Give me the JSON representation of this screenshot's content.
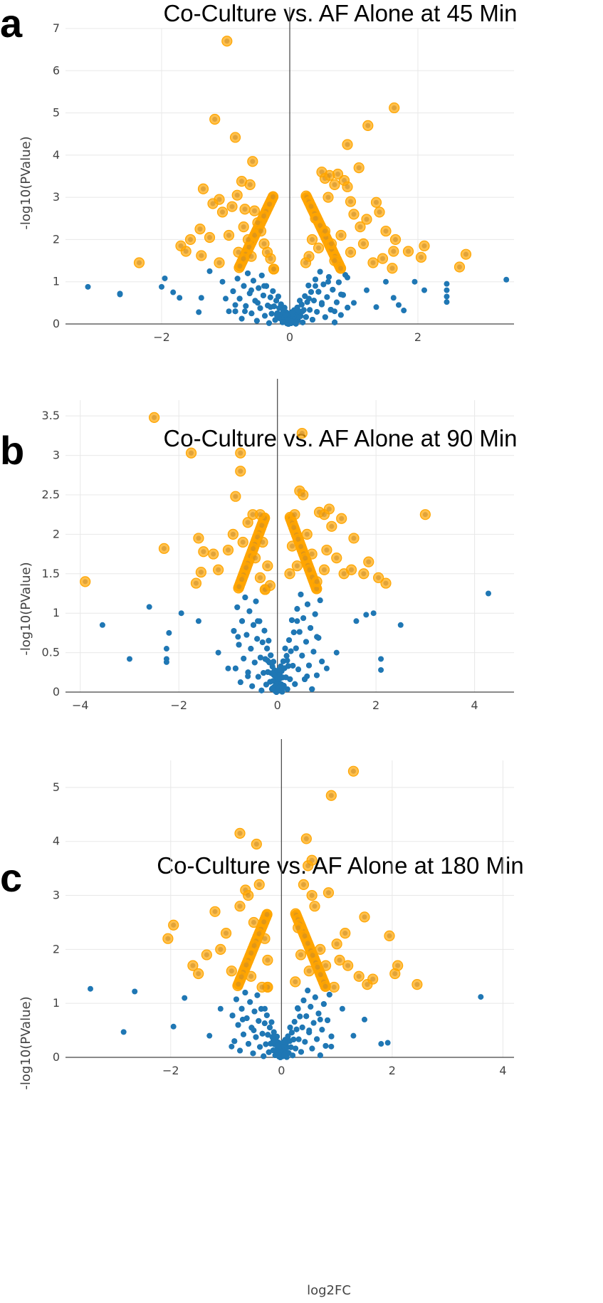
{
  "chart_data": [
    {
      "type": "scatter",
      "panel": "a",
      "title": "Co-Culture vs. AF Alone at 45 Min",
      "xlabel": "",
      "ylabel": "-log10(PValue)",
      "xlim": [
        -3.5,
        3.5
      ],
      "ylim": [
        0,
        7
      ],
      "xticks": [
        -2,
        0,
        2
      ],
      "yticks": [
        0,
        1,
        2,
        3,
        4,
        5,
        6,
        7
      ],
      "grid": true,
      "colors": {
        "significant": "#ffa500",
        "not_significant": "#1f77b4"
      },
      "significant_points": [
        [
          -0.98,
          6.7
        ],
        [
          -1.17,
          4.85
        ],
        [
          -0.85,
          4.42
        ],
        [
          -1.05,
          2.65
        ],
        [
          -1.35,
          3.2
        ],
        [
          -1.1,
          2.95
        ],
        [
          -0.75,
          3.38
        ],
        [
          -0.62,
          3.3
        ],
        [
          -0.58,
          3.85
        ],
        [
          -0.82,
          3.05
        ],
        [
          -0.9,
          2.78
        ],
        [
          -0.7,
          2.72
        ],
        [
          -1.2,
          2.85
        ],
        [
          -1.4,
          2.25
        ],
        [
          -1.25,
          2.05
        ],
        [
          -1.55,
          2.0
        ],
        [
          -1.7,
          1.85
        ],
        [
          -1.62,
          1.72
        ],
        [
          -1.38,
          1.62
        ],
        [
          -2.35,
          1.45
        ],
        [
          -1.1,
          1.45
        ],
        [
          -0.95,
          2.1
        ],
        [
          -0.8,
          1.7
        ],
        [
          -0.55,
          2.68
        ],
        [
          -0.5,
          2.4
        ],
        [
          -0.45,
          2.2
        ],
        [
          -0.4,
          1.9
        ],
        [
          -0.35,
          1.7
        ],
        [
          -0.3,
          1.55
        ],
        [
          -0.6,
          1.6
        ],
        [
          -0.72,
          2.3
        ],
        [
          -0.65,
          2.0
        ],
        [
          0.5,
          3.6
        ],
        [
          0.55,
          3.45
        ],
        [
          0.62,
          3.52
        ],
        [
          0.7,
          3.3
        ],
        [
          0.75,
          3.55
        ],
        [
          0.6,
          3.0
        ],
        [
          0.85,
          3.4
        ],
        [
          0.9,
          3.25
        ],
        [
          1.08,
          3.7
        ],
        [
          0.9,
          4.25
        ],
        [
          1.22,
          4.7
        ],
        [
          1.63,
          5.12
        ],
        [
          1.35,
          2.88
        ],
        [
          1.4,
          2.65
        ],
        [
          1.2,
          2.48
        ],
        [
          1.1,
          2.3
        ],
        [
          0.95,
          2.9
        ],
        [
          1.0,
          2.6
        ],
        [
          1.5,
          2.2
        ],
        [
          1.65,
          2.0
        ],
        [
          1.85,
          1.72
        ],
        [
          2.1,
          1.85
        ],
        [
          2.05,
          1.58
        ],
        [
          1.62,
          1.72
        ],
        [
          1.6,
          1.32
        ],
        [
          1.45,
          1.55
        ],
        [
          1.3,
          1.45
        ],
        [
          2.65,
          1.35
        ],
        [
          2.75,
          1.65
        ],
        [
          0.35,
          2.0
        ],
        [
          0.4,
          2.5
        ],
        [
          0.45,
          1.8
        ],
        [
          0.3,
          1.6
        ],
        [
          0.25,
          1.45
        ],
        [
          0.55,
          2.2
        ],
        [
          0.65,
          1.9
        ],
        [
          0.8,
          2.1
        ],
        [
          0.7,
          1.5
        ],
        [
          0.95,
          1.7
        ],
        [
          1.15,
          1.9
        ]
      ],
      "nonsignificant_points": [
        [
          -3.55,
          1.12
        ],
        [
          -3.15,
          0.88
        ],
        [
          -2.65,
          0.72
        ],
        [
          -2.65,
          0.7
        ],
        [
          -2.0,
          0.88
        ],
        [
          -1.95,
          1.08
        ],
        [
          -1.82,
          0.75
        ],
        [
          -1.72,
          0.62
        ],
        [
          -1.42,
          0.28
        ],
        [
          -1.38,
          0.62
        ],
        [
          -1.25,
          1.25
        ],
        [
          -1.05,
          1.0
        ],
        [
          -1.0,
          0.6
        ],
        [
          -0.95,
          0.3
        ],
        [
          -0.85,
          0.45
        ],
        [
          -0.7,
          0.3
        ],
        [
          -0.6,
          0.8
        ],
        [
          -0.5,
          0.5
        ],
        [
          -0.4,
          0.9
        ],
        [
          -0.3,
          0.4
        ],
        [
          -0.2,
          0.2
        ],
        [
          -0.1,
          0.05
        ],
        [
          0.1,
          0.05
        ],
        [
          0.2,
          0.3
        ],
        [
          0.3,
          0.6
        ],
        [
          0.4,
          0.9
        ],
        [
          0.5,
          0.5
        ],
        [
          0.6,
          1.0
        ],
        [
          0.7,
          0.3
        ],
        [
          0.8,
          0.7
        ],
        [
          0.9,
          1.1
        ],
        [
          1.0,
          0.5
        ],
        [
          1.2,
          0.8
        ],
        [
          1.35,
          0.4
        ],
        [
          1.5,
          1.0
        ],
        [
          1.62,
          0.62
        ],
        [
          1.7,
          0.45
        ],
        [
          1.78,
          0.32
        ],
        [
          1.95,
          1.0
        ],
        [
          2.1,
          0.8
        ],
        [
          2.45,
          0.95
        ],
        [
          2.45,
          0.8
        ],
        [
          2.45,
          0.65
        ],
        [
          2.45,
          0.52
        ],
        [
          3.38,
          1.05
        ]
      ]
    },
    {
      "type": "scatter",
      "panel": "b",
      "title": "Co-Culture vs. AF Alone at 90 Min",
      "xlabel": "",
      "ylabel": "-log10(PValue)",
      "xlim": [
        -4.3,
        4.8
      ],
      "ylim": [
        0,
        3.7
      ],
      "xticks": [
        -4,
        -2,
        0,
        2,
        4
      ],
      "yticks": [
        0,
        0.5,
        1,
        1.5,
        2,
        2.5,
        3,
        3.5
      ],
      "grid": true,
      "colors": {
        "significant": "#ffa500",
        "not_significant": "#1f77b4"
      },
      "significant_points": [
        [
          -2.5,
          3.48
        ],
        [
          -1.75,
          3.03
        ],
        [
          -0.75,
          3.03
        ],
        [
          -0.75,
          2.8
        ],
        [
          -0.85,
          2.48
        ],
        [
          -0.5,
          2.25
        ],
        [
          -0.35,
          2.25
        ],
        [
          -1.6,
          1.95
        ],
        [
          -2.3,
          1.82
        ],
        [
          -1.5,
          1.78
        ],
        [
          -1.3,
          1.75
        ],
        [
          -1.2,
          1.55
        ],
        [
          -1.55,
          1.52
        ],
        [
          -1.65,
          1.38
        ],
        [
          -3.9,
          1.4
        ],
        [
          -1.0,
          1.8
        ],
        [
          -0.9,
          2.0
        ],
        [
          -0.7,
          1.9
        ],
        [
          -0.6,
          2.15
        ],
        [
          -0.3,
          1.9
        ],
        [
          -0.45,
          1.7
        ],
        [
          -0.35,
          1.45
        ],
        [
          -0.2,
          1.6
        ],
        [
          -0.15,
          1.35
        ],
        [
          0.45,
          2.55
        ],
        [
          0.52,
          2.5
        ],
        [
          0.35,
          2.25
        ],
        [
          0.5,
          3.28
        ],
        [
          0.6,
          2.0
        ],
        [
          0.85,
          2.28
        ],
        [
          0.95,
          2.25
        ],
        [
          1.05,
          2.32
        ],
        [
          1.1,
          2.1
        ],
        [
          1.3,
          2.2
        ],
        [
          1.55,
          1.95
        ],
        [
          1.2,
          1.7
        ],
        [
          1.35,
          1.5
        ],
        [
          1.5,
          1.55
        ],
        [
          1.75,
          1.5
        ],
        [
          1.85,
          1.65
        ],
        [
          2.05,
          1.45
        ],
        [
          2.2,
          1.38
        ],
        [
          3.0,
          2.25
        ],
        [
          0.25,
          1.5
        ],
        [
          0.3,
          1.85
        ],
        [
          0.4,
          1.6
        ],
        [
          0.7,
          1.75
        ],
        [
          0.8,
          1.4
        ],
        [
          0.95,
          1.55
        ],
        [
          1.0,
          1.8
        ]
      ],
      "nonsignificant_points": [
        [
          -3.55,
          0.85
        ],
        [
          -3.0,
          0.42
        ],
        [
          -2.6,
          1.08
        ],
        [
          -2.2,
          0.75
        ],
        [
          -2.25,
          0.55
        ],
        [
          -2.25,
          0.42
        ],
        [
          -2.25,
          0.38
        ],
        [
          -1.95,
          1.0
        ],
        [
          -1.6,
          0.9
        ],
        [
          -1.2,
          0.5
        ],
        [
          -1.0,
          0.3
        ],
        [
          -0.8,
          0.7
        ],
        [
          -0.6,
          0.2
        ],
        [
          -0.4,
          0.9
        ],
        [
          -0.2,
          0.4
        ],
        [
          -0.1,
          0.05
        ],
        [
          0.1,
          0.05
        ],
        [
          0.2,
          0.4
        ],
        [
          0.4,
          0.9
        ],
        [
          0.6,
          0.2
        ],
        [
          0.8,
          0.7
        ],
        [
          1.0,
          0.3
        ],
        [
          1.2,
          0.5
        ],
        [
          1.6,
          0.9
        ],
        [
          1.8,
          0.98
        ],
        [
          1.95,
          1.0
        ],
        [
          2.1,
          0.42
        ],
        [
          2.1,
          0.28
        ],
        [
          2.5,
          0.85
        ],
        [
          4.28,
          1.25
        ]
      ]
    },
    {
      "type": "scatter",
      "panel": "c",
      "title": "Co-Culture vs. AF Alone at 180 Min",
      "xlabel": "log2FC",
      "ylabel": "-log10(PValue)",
      "xlim": [
        -3.9,
        4.2
      ],
      "ylim": [
        0,
        5.5
      ],
      "xticks": [
        -2,
        0,
        2,
        4
      ],
      "yticks": [
        0,
        1,
        2,
        3,
        4,
        5
      ],
      "grid": true,
      "colors": {
        "significant": "#ffa500",
        "not_significant": "#1f77b4"
      },
      "significant_points": [
        [
          -0.75,
          4.15
        ],
        [
          -0.45,
          3.95
        ],
        [
          -0.4,
          3.2
        ],
        [
          -0.65,
          3.1
        ],
        [
          -0.6,
          3.0
        ],
        [
          -0.75,
          2.8
        ],
        [
          -1.2,
          2.7
        ],
        [
          -1.0,
          2.3
        ],
        [
          -1.35,
          1.9
        ],
        [
          -1.5,
          1.55
        ],
        [
          -1.6,
          1.7
        ],
        [
          -1.1,
          2.0
        ],
        [
          -0.9,
          1.6
        ],
        [
          -1.95,
          2.45
        ],
        [
          -2.05,
          2.2
        ],
        [
          -0.5,
          2.5
        ],
        [
          -0.3,
          2.2
        ],
        [
          -0.25,
          1.8
        ],
        [
          -0.55,
          1.5
        ],
        [
          -0.35,
          1.3
        ],
        [
          0.45,
          4.05
        ],
        [
          0.55,
          3.65
        ],
        [
          0.48,
          3.55
        ],
        [
          0.4,
          3.2
        ],
        [
          0.55,
          3.0
        ],
        [
          0.85,
          3.05
        ],
        [
          0.6,
          2.8
        ],
        [
          0.9,
          4.85
        ],
        [
          1.3,
          5.3
        ],
        [
          1.5,
          2.6
        ],
        [
          1.15,
          2.3
        ],
        [
          1.0,
          2.1
        ],
        [
          1.2,
          1.7
        ],
        [
          1.4,
          1.5
        ],
        [
          1.55,
          1.35
        ],
        [
          1.65,
          1.45
        ],
        [
          1.95,
          2.25
        ],
        [
          2.05,
          1.55
        ],
        [
          2.1,
          1.7
        ],
        [
          2.45,
          1.35
        ],
        [
          0.3,
          2.4
        ],
        [
          0.35,
          1.9
        ],
        [
          0.5,
          1.6
        ],
        [
          0.25,
          1.4
        ],
        [
          0.7,
          2.0
        ],
        [
          0.8,
          1.7
        ],
        [
          0.95,
          1.3
        ],
        [
          1.05,
          1.8
        ]
      ],
      "nonsignificant_points": [
        [
          -3.45,
          1.27
        ],
        [
          -2.85,
          0.47
        ],
        [
          -2.65,
          1.22
        ],
        [
          -1.95,
          0.57
        ],
        [
          -1.75,
          1.1
        ],
        [
          -1.3,
          0.4
        ],
        [
          -1.1,
          0.9
        ],
        [
          -0.9,
          0.2
        ],
        [
          -0.7,
          0.7
        ],
        [
          -0.5,
          0.5
        ],
        [
          -0.3,
          0.9
        ],
        [
          -0.15,
          0.3
        ],
        [
          -0.05,
          0.05
        ],
        [
          0.05,
          0.05
        ],
        [
          0.15,
          0.3
        ],
        [
          0.3,
          0.9
        ],
        [
          0.5,
          0.5
        ],
        [
          0.7,
          0.7
        ],
        [
          0.9,
          0.2
        ],
        [
          1.1,
          0.9
        ],
        [
          1.3,
          0.4
        ],
        [
          1.5,
          0.7
        ],
        [
          1.8,
          0.25
        ],
        [
          1.92,
          0.27
        ],
        [
          3.6,
          1.12
        ]
      ]
    }
  ],
  "panels": [
    {
      "letter": "a"
    },
    {
      "letter": "b"
    },
    {
      "letter": "c"
    }
  ]
}
